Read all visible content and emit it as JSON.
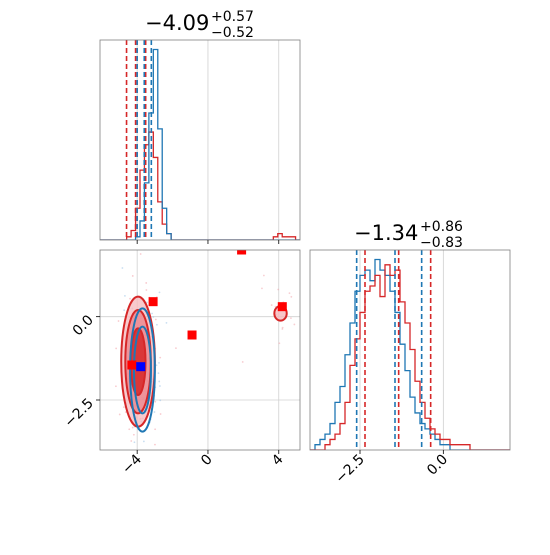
{
  "chart_data": {
    "type": "corner",
    "series": [
      {
        "name": "",
        "color": "#1f77b4"
      },
      {
        "name": "",
        "color": "#d62728"
      }
    ],
    "parameters": [
      {
        "title": {
          "value": "−4.09",
          "upper": "+0.57",
          "lower": "−0.52"
        },
        "median": -4.09,
        "range": [
          -6.1,
          5.2
        ],
        "ticks": [
          {
            "value": -4,
            "label": "−4"
          },
          {
            "value": 0,
            "label": "0"
          },
          {
            "value": 4,
            "label": "4"
          }
        ],
        "quantiles": {
          "blue": [
            -4.0,
            -3.6,
            -3.2
          ],
          "red": [
            -4.6,
            -4.09,
            -3.52
          ]
        }
      },
      {
        "title": {
          "value": "−1.34",
          "upper": "+0.86",
          "lower": "−0.83"
        },
        "median": -1.34,
        "range": [
          -4.0,
          2.0
        ],
        "ticks": [
          {
            "value": -2.5,
            "label": "−2.5"
          },
          {
            "value": 0.0,
            "label": "0.0"
          }
        ],
        "quantiles": {
          "blue": [
            -2.6,
            -1.45,
            -0.65
          ],
          "red": [
            -2.35,
            -1.34,
            -0.38
          ]
        }
      }
    ],
    "hist_x1": {
      "bins": [
        -6.1,
        5.2,
        45
      ],
      "blue": [
        0,
        0,
        0,
        0,
        0,
        0,
        0,
        0,
        1,
        6,
        18,
        40,
        60,
        35,
        10,
        2,
        0,
        0,
        0,
        0,
        0,
        0,
        0,
        0,
        0,
        0,
        0,
        0,
        0,
        0,
        0,
        0,
        0,
        0,
        0,
        0,
        0,
        0,
        0,
        0,
        0,
        0,
        0,
        0,
        0
      ],
      "red": [
        0,
        0,
        0,
        0,
        0,
        0,
        1,
        3,
        10,
        22,
        30,
        34,
        26,
        12,
        5,
        2,
        0,
        0,
        0,
        0,
        0,
        0,
        0,
        0,
        0,
        0,
        0,
        0,
        0,
        0,
        0,
        0,
        0,
        0,
        0,
        0,
        0,
        0,
        0,
        1,
        2,
        1,
        1,
        1,
        0
      ]
    },
    "hist_x2": {
      "bins": [
        -4.0,
        2.0,
        40
      ],
      "blue": [
        0,
        1,
        2,
        3,
        5,
        9,
        12,
        18,
        24,
        30,
        33,
        34,
        32,
        36,
        34,
        33,
        30,
        26,
        20,
        15,
        10,
        7,
        5,
        4,
        3,
        2,
        1,
        1,
        0,
        0,
        0,
        0,
        0,
        0,
        0,
        0,
        0,
        0,
        0,
        0
      ],
      "red": [
        0,
        0,
        0,
        1,
        2,
        3,
        5,
        9,
        16,
        21,
        26,
        30,
        31,
        33,
        29,
        35,
        33,
        34,
        28,
        24,
        19,
        13,
        9,
        6,
        4,
        3,
        2,
        2,
        1,
        1,
        1,
        1,
        0,
        0,
        0,
        0,
        0,
        0,
        0,
        0
      ]
    },
    "scatter_2d": {
      "red_contours": [
        {
          "cx": -3.95,
          "cy": -1.35,
          "rx": 0.95,
          "ry": 1.95
        },
        {
          "cx": -3.95,
          "cy": -1.35,
          "rx": 0.72,
          "ry": 1.55
        },
        {
          "cx": -3.95,
          "cy": -1.35,
          "rx": 0.42,
          "ry": 1.0
        }
      ],
      "red_island": {
        "cx": 4.1,
        "cy": 0.1,
        "rx": 0.35,
        "ry": 0.22
      },
      "blue_contours": [
        {
          "cx": -3.7,
          "cy": -1.6,
          "rx": 0.7,
          "ry": 1.85
        },
        {
          "cx": -3.7,
          "cy": -1.6,
          "rx": 0.48,
          "ry": 1.3
        }
      ],
      "red_markers": [
        {
          "x": -3.1,
          "y": 0.45
        },
        {
          "x": -0.9,
          "y": -0.55
        },
        {
          "x": 1.9,
          "y": 2.0
        },
        {
          "x": 4.2,
          "y": 0.3
        },
        {
          "x": -4.3,
          "y": -1.45
        }
      ],
      "blue_markers": [
        {
          "x": -3.8,
          "y": -1.5
        }
      ]
    }
  }
}
